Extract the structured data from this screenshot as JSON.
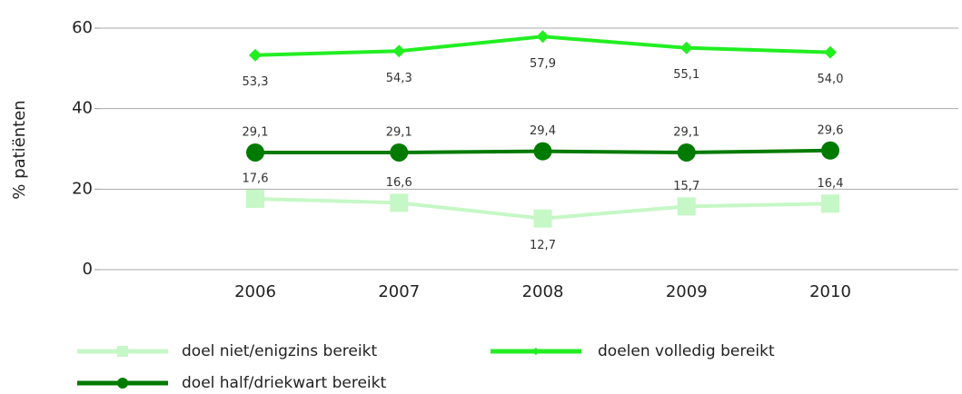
{
  "chart_data": {
    "type": "line",
    "y_label": "% patiënten",
    "categories": [
      "2006",
      "2007",
      "2008",
      "2009",
      "2010"
    ],
    "ylim": [
      0,
      60
    ],
    "yticks": [
      0,
      20,
      40,
      60
    ],
    "grid": true,
    "series": [
      {
        "name": "doel niet/enigzins bereikt",
        "color": "#c6f7c6",
        "marker": "square",
        "values": [
          17.6,
          16.6,
          12.7,
          15.7,
          16.4
        ],
        "value_labels": [
          "17,6",
          "16,6",
          "12,7",
          "15,7",
          "16,4"
        ]
      },
      {
        "name": "doelen volledig bereikt",
        "color": "#22ee22",
        "marker": "diamond",
        "values": [
          53.3,
          54.3,
          57.9,
          55.1,
          54.0
        ],
        "value_labels": [
          "53,3",
          "54,3",
          "57,9",
          "55,1",
          "54,0"
        ]
      },
      {
        "name": "doel half/driekwart bereikt",
        "color": "#007a00",
        "marker": "circle",
        "values": [
          29.1,
          29.1,
          29.4,
          29.1,
          29.6
        ],
        "value_labels": [
          "29,1",
          "29,1",
          "29,4",
          "29,1",
          "29,6"
        ]
      }
    ]
  }
}
